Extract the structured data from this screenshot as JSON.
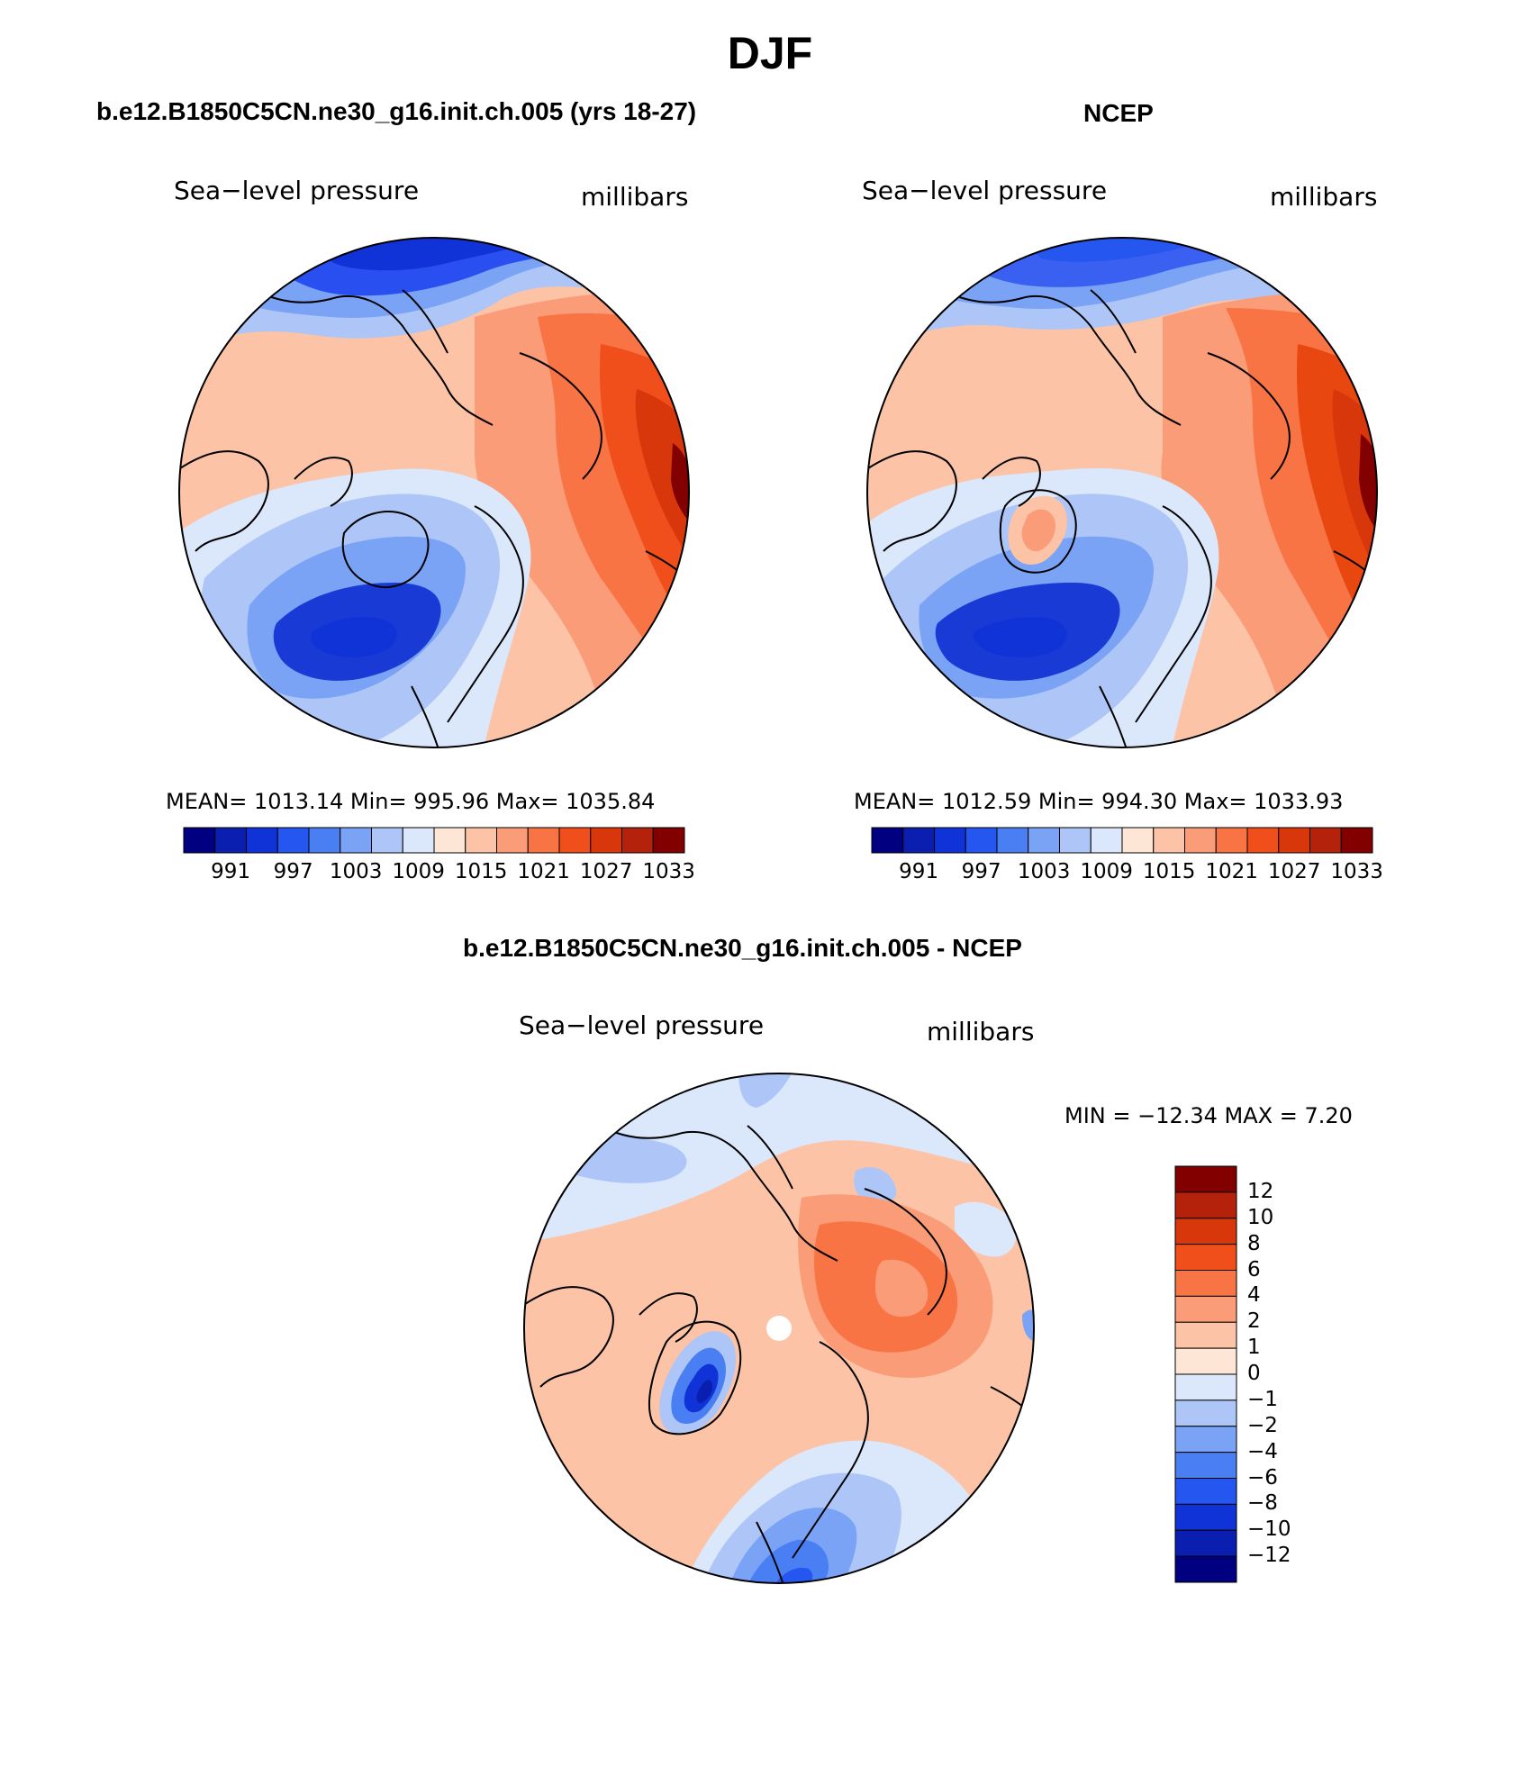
{
  "figure": {
    "title": "DJF"
  },
  "panels": [
    {
      "id": "model",
      "title": "b.e12.B1850C5CN.ne30_g16.init.ch.005 (yrs 18-27)",
      "variable": "Sea−level pressure",
      "units": "millibars",
      "stats": "MEAN=  1013.14    Min=  995.96    Max=  1035.84",
      "colorbar_ticks": [
        "991",
        "997",
        "1003",
        "1009",
        "1015",
        "1021",
        "1027",
        "1033"
      ],
      "regions": [
        {
          "name": "aleutian-low",
          "fill": "#2a4ff0"
        },
        {
          "name": "icelandic-low",
          "fill": "#1a3ad6"
        },
        {
          "name": "siberian-high",
          "fill": "#d8360b"
        },
        {
          "name": "arctic-high",
          "fill": "#fb9c78"
        }
      ]
    },
    {
      "id": "obs",
      "title": "NCEP",
      "variable": "Sea−level pressure",
      "units": "millibars",
      "stats": "MEAN=  1012.59    Min=  994.30    Max=  1033.93",
      "colorbar_ticks": [
        "991",
        "997",
        "1003",
        "1009",
        "1015",
        "1021",
        "1027",
        "1033"
      ],
      "regions": [
        {
          "name": "aleutian-low",
          "fill": "#3a60f2"
        },
        {
          "name": "icelandic-low",
          "fill": "#1a3ad6"
        },
        {
          "name": "siberian-high",
          "fill": "#e8480f"
        },
        {
          "name": "greenland-high",
          "fill": "#fb9c78"
        }
      ]
    },
    {
      "id": "diff",
      "title": "b.e12.B1850C5CN.ne30_g16.init.ch.005 - NCEP",
      "variable": "Sea−level pressure",
      "units": "millibars",
      "stats": "MIN  =  −12.34  MAX  =     7.20",
      "colorbar_ticks": [
        "12",
        "10",
        "8",
        "6",
        "4",
        "2",
        "1",
        "0",
        "−1",
        "−2",
        "−4",
        "−6",
        "−8",
        "−10",
        "−12"
      ]
    }
  ],
  "colors": {
    "abs_scale": [
      "#000080",
      "#0a1fb0",
      "#1033d8",
      "#2556f0",
      "#4a7ff3",
      "#7aa3f5",
      "#adc6f7",
      "#dbe7fa",
      "#fde6d6",
      "#fcc3a6",
      "#fb9c78",
      "#f97445",
      "#f04e1a",
      "#d8360b",
      "#b5220b",
      "#820000"
    ],
    "diff_scale": [
      "#820000",
      "#b5220b",
      "#d8360b",
      "#f04e1a",
      "#f97445",
      "#fb9c78",
      "#fcc3a6",
      "#fde6d6",
      "#dbe7fa",
      "#adc6f7",
      "#7aa3f5",
      "#4a7ff3",
      "#2556f0",
      "#1033d8",
      "#0a1fb0",
      "#000080"
    ]
  }
}
